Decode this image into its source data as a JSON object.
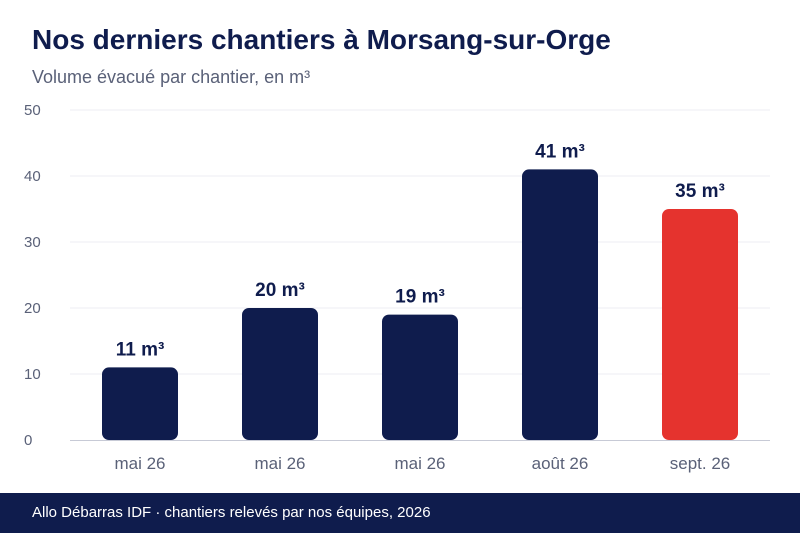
{
  "header": {
    "title": "Nos derniers chantiers à Morsang-sur-Orge",
    "subtitle": "Volume évacué par chantier, en m³"
  },
  "footer": {
    "text": "Allo Débarras IDF · chantiers relevés par nos équipes, 2026"
  },
  "colors": {
    "bar_default": "#0f1c4d",
    "bar_highlight": "#e5332e",
    "axis_text": "#5a6178",
    "grid": "#eceef3"
  },
  "chart_data": {
    "type": "bar",
    "title": "Nos derniers chantiers à Morsang-sur-Orge",
    "subtitle": "Volume évacué par chantier, en m³",
    "categories": [
      "mai 26",
      "mai 26",
      "mai 26",
      "août 26",
      "sept. 26"
    ],
    "values": [
      11,
      20,
      19,
      41,
      35
    ],
    "value_labels": [
      "11 m³",
      "20 m³",
      "19 m³",
      "41 m³",
      "35 m³"
    ],
    "highlight_index": 4,
    "ylim": [
      0,
      50
    ],
    "yticks": [
      0,
      10,
      20,
      30,
      40,
      50
    ],
    "grid": true,
    "xlabel": "",
    "ylabel": ""
  }
}
